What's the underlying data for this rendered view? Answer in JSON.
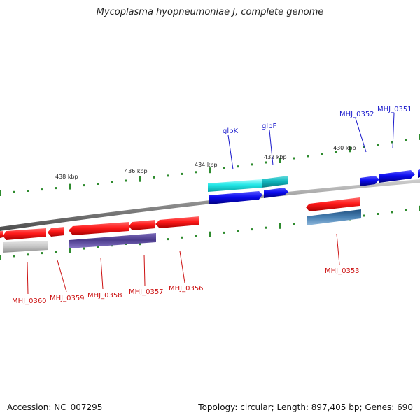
{
  "title": "Mycoplasma hyopneumoniae J, complete genome",
  "footer": {
    "accession": "Accession: NC_007295",
    "summary": "Topology: circular; Length: 897,405 bp; Genes: 690"
  },
  "colors": {
    "forward_label": "#1a1acc",
    "reverse_label": "#cc1111",
    "backbone": "#8a8a8a",
    "tick": "#2e8b2e"
  },
  "scale_labels": [
    {
      "text": "438 kbp"
    },
    {
      "text": "436 kbp"
    },
    {
      "text": "434 kbp"
    },
    {
      "text": "432 kbp"
    },
    {
      "text": "430 kbp"
    }
  ],
  "gene_labels": [
    {
      "text": "glpK",
      "strand": "forward"
    },
    {
      "text": "glpF",
      "strand": "forward"
    },
    {
      "text": "MHJ_0352",
      "strand": "forward"
    },
    {
      "text": "MHJ_0351",
      "strand": "forward"
    },
    {
      "text": "MHJ_0360",
      "strand": "reverse"
    },
    {
      "text": "MHJ_0359",
      "strand": "reverse"
    },
    {
      "text": "MHJ_0358",
      "strand": "reverse"
    },
    {
      "text": "MHJ_0357",
      "strand": "reverse"
    },
    {
      "text": "MHJ_0356",
      "strand": "reverse"
    },
    {
      "text": "MHJ_0353",
      "strand": "reverse"
    }
  ]
}
